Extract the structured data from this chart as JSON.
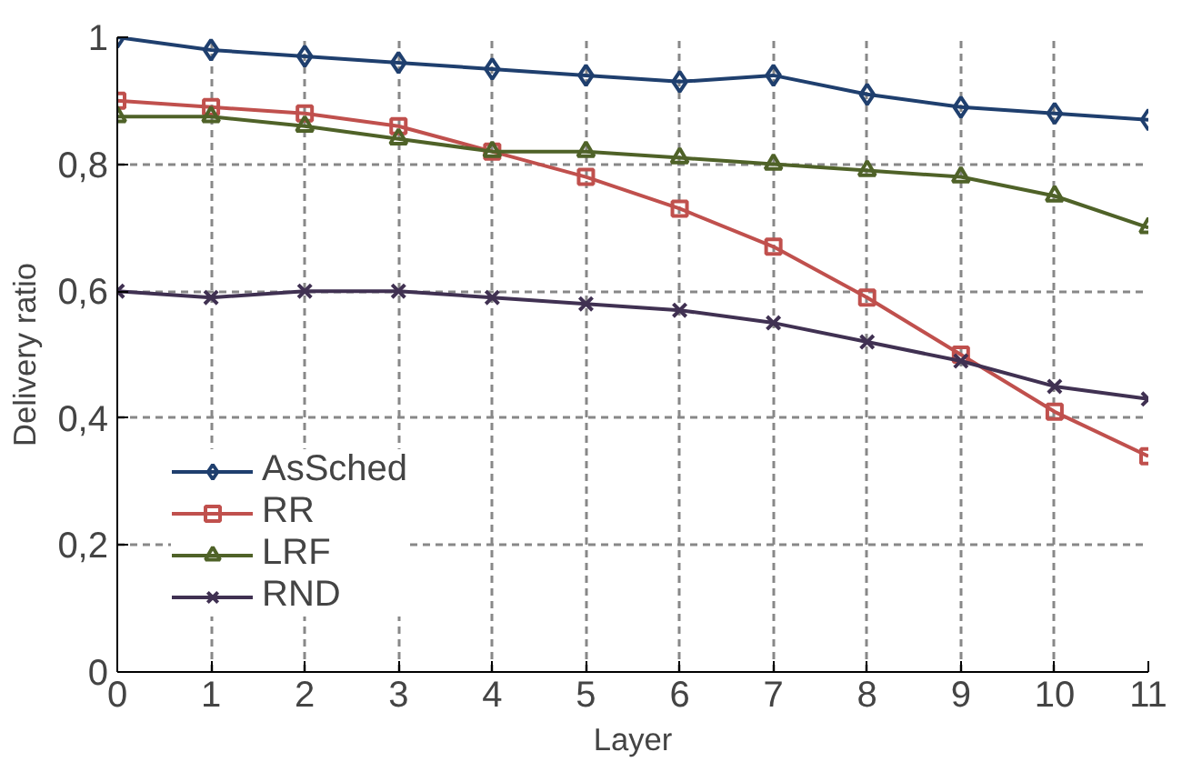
{
  "chart_data": {
    "type": "line",
    "xlabel": "Layer",
    "ylabel": "Delivery ratio",
    "x": [
      0,
      1,
      2,
      3,
      4,
      5,
      6,
      7,
      8,
      9,
      10,
      11
    ],
    "xlim": [
      0,
      11
    ],
    "xticks": [
      0,
      1,
      2,
      3,
      4,
      5,
      6,
      7,
      8,
      9,
      10,
      11
    ],
    "ylim": [
      0,
      1
    ],
    "yticks": [
      {
        "value": 0,
        "label": "0"
      },
      {
        "value": 0.2,
        "label": "0,2"
      },
      {
        "value": 0.4,
        "label": "0,4"
      },
      {
        "value": 0.6,
        "label": "0,6"
      },
      {
        "value": 0.8,
        "label": "0,8"
      },
      {
        "value": 1,
        "label": "1"
      }
    ],
    "grid": true,
    "legend": "bottom left",
    "line_style": "solid",
    "series": [
      {
        "name": "AsSched",
        "color": "#1f3f6e",
        "marker": "diamond",
        "values": [
          1,
          0.98,
          0.97,
          0.96,
          0.95,
          0.94,
          0.93,
          0.94,
          0.91,
          0.89,
          0.88,
          0.87
        ]
      },
      {
        "name": "RR",
        "color": "#c0504d",
        "marker": "square",
        "values": [
          0.9,
          0.89,
          0.88,
          0.86,
          0.82,
          0.78,
          0.73,
          0.67,
          0.59,
          0.5,
          0.41,
          0.34
        ]
      },
      {
        "name": "LRF",
        "color": "#4f6228",
        "marker": "triangle",
        "values": [
          0.875,
          0.875,
          0.86,
          0.84,
          0.82,
          0.82,
          0.81,
          0.8,
          0.79,
          0.78,
          0.75,
          0.7
        ]
      },
      {
        "name": "RND",
        "color": "#403152",
        "marker": "cross",
        "values": [
          0.6,
          0.59,
          0.6,
          0.6,
          0.59,
          0.58,
          0.57,
          0.55,
          0.52,
          0.49,
          0.45,
          0.43
        ]
      }
    ]
  }
}
